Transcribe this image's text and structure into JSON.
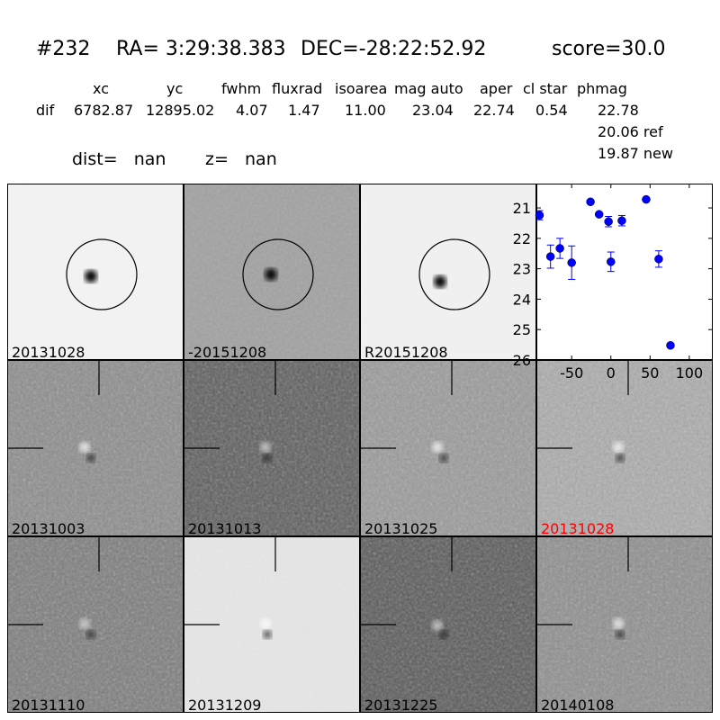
{
  "header": {
    "id": "#232",
    "ra": "RA= 3:29:38.383",
    "dec": "DEC=-28:22:52.92",
    "score": "score=30.0",
    "columns": [
      "xc",
      "yc",
      "fwhm",
      "fluxrad",
      "isoarea",
      "mag auto",
      "aper",
      "cl star",
      "phmag"
    ],
    "row_label": "dif",
    "values": [
      "6782.87",
      "12895.02",
      "4.07",
      "1.47",
      "11.00",
      "23.04",
      "22.74",
      "0.54",
      "22.78"
    ],
    "ref": "20.06 ref",
    "new": "19.87 new",
    "dist": "dist=   nan",
    "z": "z=   nan"
  },
  "stamps": [
    {
      "label": "20131028",
      "shade": "#f3f3f3",
      "circle": true
    },
    {
      "label": "-20151208",
      "shade": "#a2a2a2",
      "circle": true
    },
    {
      "label": "R20151208",
      "shade": "#f1f1f1",
      "circle": true
    },
    {
      "label": "20131003",
      "shade": "#8c8c8c"
    },
    {
      "label": "20131013",
      "shade": "#5c5c5c"
    },
    {
      "label": "20131025",
      "shade": "#9a9a9a"
    },
    {
      "label": "20131028",
      "shade": "#acacac",
      "highlight": "#ff0000"
    },
    {
      "label": "20131110",
      "shade": "#7c7c7c"
    },
    {
      "label": "20131209",
      "shade": "#e6e6e6"
    },
    {
      "label": "20131225",
      "shade": "#585858"
    },
    {
      "label": "20140108",
      "shade": "#8e8e8e"
    }
  ],
  "chart_data": {
    "type": "scatter",
    "xlim": [
      -95,
      130
    ],
    "ylim": [
      26,
      20.2
    ],
    "y_inverted": true,
    "xticks": [
      -50,
      0,
      50,
      100
    ],
    "yticks": [
      21,
      22,
      23,
      24,
      25,
      26
    ],
    "marker_color": "#0000ff",
    "x": [
      -91,
      -77,
      -65,
      -50,
      -26,
      -15,
      -3,
      0,
      14,
      45,
      61,
      76
    ],
    "y": [
      21.24,
      22.6,
      22.33,
      22.8,
      20.8,
      21.21,
      21.45,
      22.77,
      21.42,
      20.72,
      22.68,
      25.52
    ],
    "yerr": [
      0.15,
      0.38,
      0.33,
      0.55,
      0.05,
      0.05,
      0.17,
      0.32,
      0.17,
      0.05,
      0.27,
      0.07
    ]
  }
}
